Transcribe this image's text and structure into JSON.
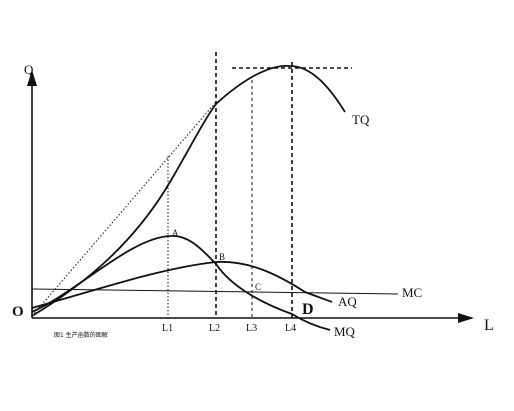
{
  "axes": {
    "y_label": "Q",
    "x_label": "L",
    "origin_label": "O"
  },
  "curves": {
    "tq": "TQ",
    "aq": "AQ",
    "mq": "MQ",
    "mc": "MC"
  },
  "points": {
    "a": "A",
    "b": "B",
    "c": "C",
    "d": "D"
  },
  "ticks": [
    "L1",
    "L2",
    "L3",
    "L4"
  ],
  "caption": "图1 生产函数的图解"
}
